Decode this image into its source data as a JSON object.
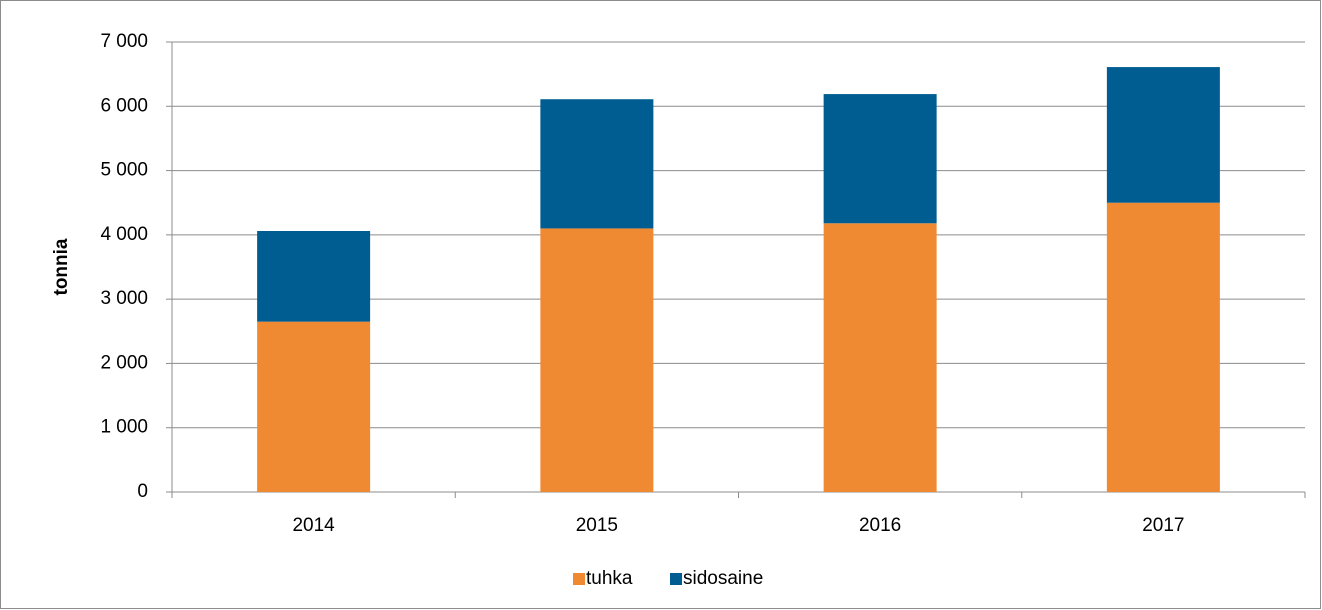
{
  "chart_data": {
    "type": "stacked_bar",
    "y_label": "tonnia",
    "categories": [
      "2014",
      "2015",
      "2016",
      "2017"
    ],
    "series": [
      {
        "name": "tuhka",
        "color": "#f08a32",
        "values": [
          2650,
          4100,
          4180,
          4500
        ]
      },
      {
        "name": "sidosaine",
        "color": "#005d92",
        "values": [
          1410,
          2010,
          2010,
          2110
        ]
      }
    ],
    "ylim": [
      0,
      7000
    ],
    "yticks": [
      0,
      {
        "value": 1000,
        "label": "1 000"
      },
      {
        "value": 2000,
        "label": "2 000"
      },
      {
        "value": 3000,
        "label": "3 000"
      },
      {
        "value": 4000,
        "label": "4 000"
      },
      {
        "value": 5000,
        "label": "5 000"
      },
      {
        "value": 6000,
        "label": "6 000"
      },
      {
        "value": 7000,
        "label": "7 000"
      }
    ],
    "grid": true,
    "legend": "bottom"
  }
}
